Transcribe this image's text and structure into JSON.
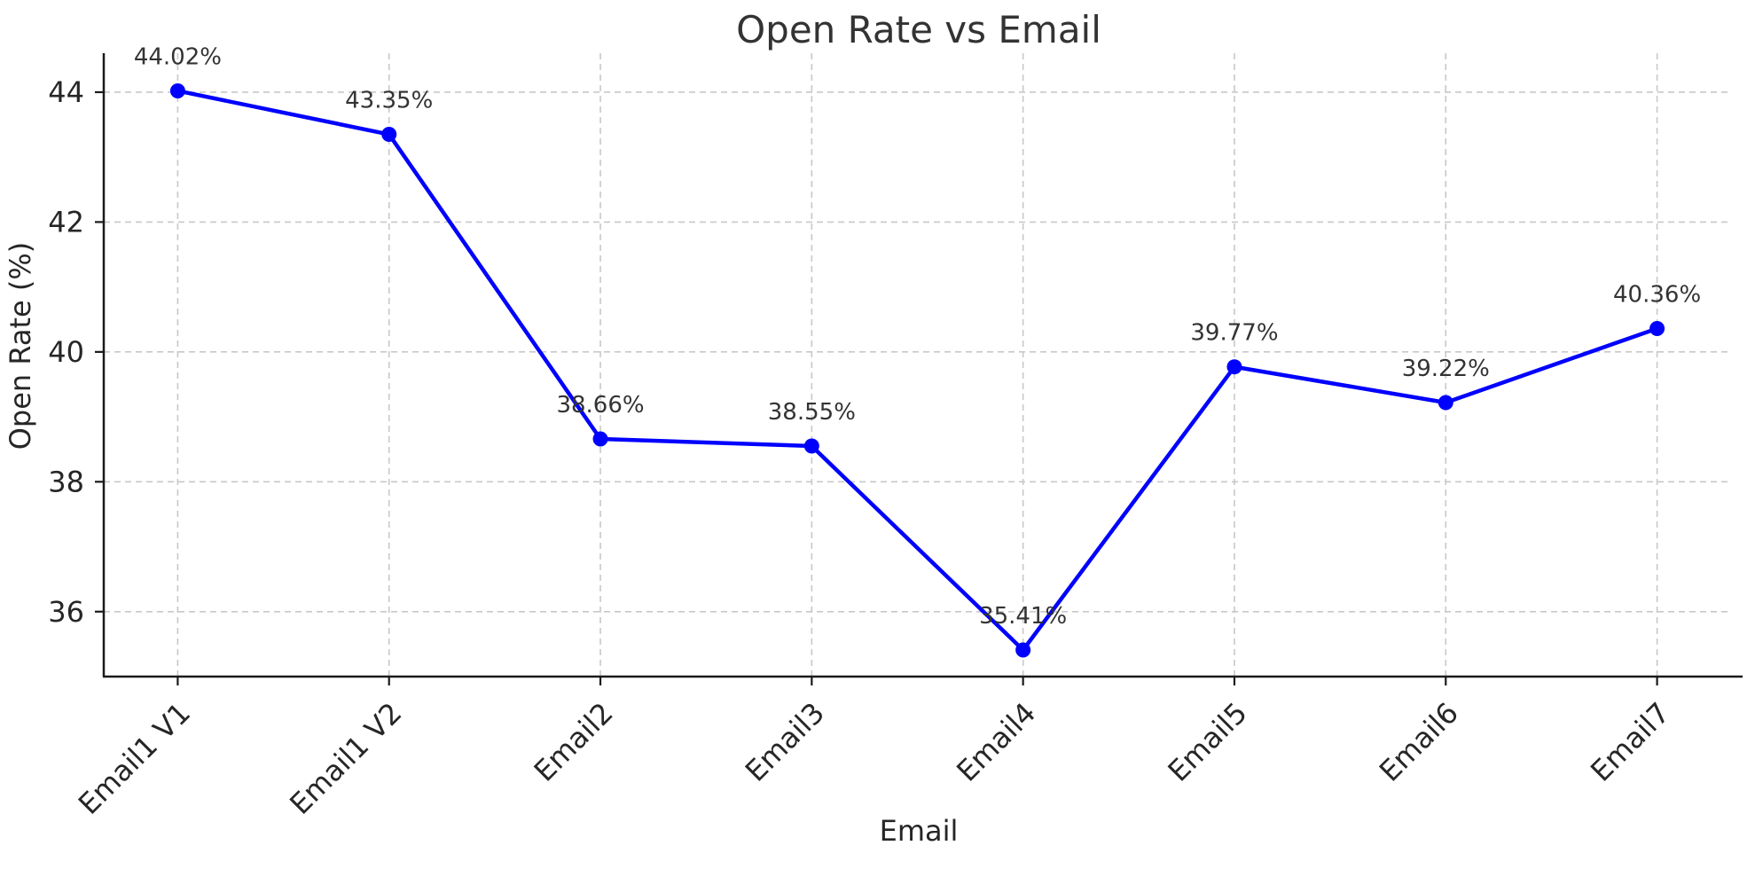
{
  "chart_data": {
    "type": "line",
    "title": "Open Rate vs Email",
    "xlabel": "Email",
    "ylabel": "Open Rate (%)",
    "categories": [
      "Email1 V1",
      "Email1 V2",
      "Email2",
      "Email3",
      "Email4",
      "Email5",
      "Email6",
      "Email7"
    ],
    "values": [
      44.02,
      43.35,
      38.66,
      38.55,
      35.41,
      39.77,
      39.22,
      40.36
    ],
    "data_labels": [
      "44.02%",
      "43.35%",
      "38.66%",
      "38.55%",
      "35.41%",
      "39.77%",
      "39.22%",
      "40.36%"
    ],
    "yticks": [
      36,
      38,
      40,
      42,
      44
    ],
    "ytick_labels": [
      "36",
      "38",
      "40",
      "42",
      "44"
    ],
    "ylim": [
      35.0,
      44.6
    ],
    "x_tick_rotation": 45,
    "grid": true,
    "legend_position": "none",
    "marker": "circle"
  },
  "colors": {
    "line": "#0000FF",
    "marker": "#0000FF",
    "grid": "#c8c8c8",
    "spine": "#1a1a1a",
    "title_text": "#333333",
    "tick_text": "#262626",
    "data_label_text": "#333333",
    "background": "#ffffff"
  }
}
